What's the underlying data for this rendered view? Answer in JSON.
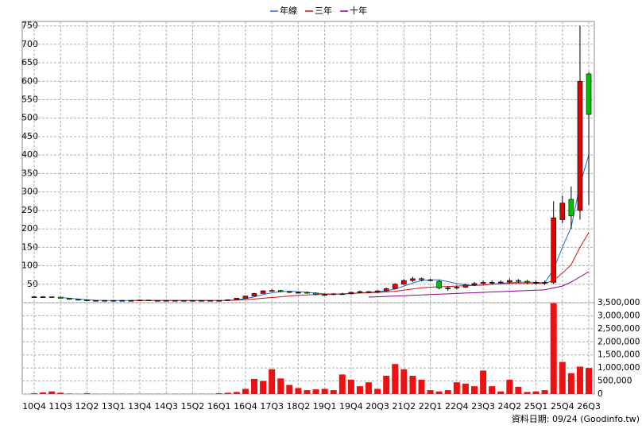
{
  "chart_data": [
    {
      "type": "candlestick",
      "categories": [
        "10Q4",
        null,
        null,
        "11Q3",
        null,
        null,
        "12Q2",
        null,
        null,
        "13Q1",
        null,
        null,
        "13Q4",
        null,
        null,
        "14Q3",
        null,
        null,
        "15Q2",
        null,
        null,
        "16Q1",
        null,
        null,
        "16Q4",
        null,
        null,
        "17Q3",
        null,
        null,
        "18Q2",
        null,
        null,
        "19Q1",
        null,
        null,
        "19Q4",
        null,
        null,
        "20Q3",
        null,
        null,
        "21Q2",
        null,
        null,
        "22Q1",
        null,
        null,
        "22Q4",
        null,
        null,
        "23Q3",
        null,
        null,
        "24Q2",
        null,
        null,
        "25Q1",
        null,
        null,
        "25Q4",
        null,
        null,
        "26Q3"
      ],
      "open": [
        16,
        16,
        16,
        15,
        12,
        9,
        7,
        6,
        6,
        6,
        6,
        6,
        6,
        7,
        6,
        6,
        6,
        6,
        6,
        6,
        6,
        6,
        6,
        8,
        12,
        18,
        25,
        32,
        33,
        30,
        28,
        28,
        26,
        22,
        22,
        24,
        24,
        28,
        30,
        28,
        32,
        38,
        50,
        60,
        65,
        62,
        58,
        40,
        40,
        42,
        48,
        52,
        55,
        55,
        56,
        60,
        58,
        55,
        55,
        55,
        225,
        280,
        250,
        620
      ],
      "high": [
        18,
        18,
        17,
        16,
        13,
        10,
        8,
        7,
        7,
        7,
        7,
        7,
        8,
        8,
        7,
        7,
        7,
        7,
        7,
        7,
        7,
        7,
        9,
        13,
        19,
        27,
        34,
        36,
        35,
        32,
        30,
        30,
        28,
        24,
        26,
        27,
        30,
        33,
        32,
        34,
        41,
        53,
        64,
        70,
        68,
        65,
        62,
        45,
        46,
        52,
        56,
        60,
        60,
        60,
        66,
        64,
        62,
        60,
        60,
        275,
        290,
        315,
        750,
        625
      ],
      "low": [
        14,
        14,
        13,
        11,
        8,
        6,
        5,
        5,
        5,
        5,
        5,
        5,
        5,
        5,
        5,
        5,
        5,
        5,
        5,
        5,
        5,
        5,
        5,
        7,
        11,
        17,
        24,
        30,
        28,
        26,
        26,
        24,
        20,
        20,
        20,
        22,
        22,
        26,
        26,
        26,
        30,
        36,
        48,
        56,
        58,
        58,
        36,
        32,
        36,
        40,
        45,
        50,
        50,
        52,
        52,
        54,
        50,
        50,
        48,
        50,
        215,
        200,
        225,
        265
      ],
      "close": [
        16,
        16,
        15,
        12,
        9,
        7,
        6,
        6,
        6,
        6,
        6,
        6,
        7,
        6,
        6,
        6,
        6,
        6,
        6,
        6,
        6,
        6,
        8,
        12,
        18,
        25,
        32,
        33,
        30,
        28,
        28,
        26,
        22,
        22,
        24,
        24,
        28,
        30,
        28,
        32,
        38,
        50,
        60,
        65,
        62,
        62,
        40,
        40,
        42,
        48,
        52,
        55,
        55,
        56,
        60,
        58,
        55,
        55,
        55,
        230,
        270,
        235,
        600,
        510
      ],
      "up_color": "#e00000",
      "down_color": "#00c000",
      "flat_color": "#000000",
      "series": [
        {
          "name": "年線",
          "color": "#1f6fd0",
          "values": [
            null,
            null,
            null,
            14,
            12,
            10,
            8,
            6.5,
            6,
            6,
            6,
            6,
            6,
            6,
            6,
            6,
            6,
            6,
            6,
            6,
            6,
            6,
            6,
            8,
            11,
            16,
            22,
            27,
            30,
            31,
            30,
            28,
            26,
            24,
            23,
            23,
            25,
            27,
            28,
            30,
            32,
            37,
            45,
            53,
            60,
            62,
            62,
            57,
            52,
            48,
            47,
            48,
            50,
            52,
            54,
            55,
            56,
            55,
            54,
            90,
            150,
            205,
            320,
            400
          ]
        },
        {
          "name": "三年",
          "color": "#d01010",
          "values": [
            null,
            null,
            null,
            null,
            null,
            null,
            null,
            null,
            null,
            null,
            null,
            6,
            6,
            6,
            6,
            6,
            6,
            6,
            6,
            6,
            6,
            6,
            6,
            7,
            8,
            10,
            12,
            14,
            16,
            18,
            20,
            21,
            22,
            22,
            23,
            24,
            25,
            26,
            27,
            28,
            29,
            31,
            34,
            37,
            40,
            42,
            43,
            44,
            45,
            46,
            47,
            48,
            50,
            51,
            52,
            52,
            52,
            52,
            52,
            60,
            80,
            103,
            150,
            190
          ]
        },
        {
          "name": "十年",
          "color": "#8b008b",
          "values": [
            null,
            null,
            null,
            null,
            null,
            null,
            null,
            null,
            null,
            null,
            null,
            null,
            null,
            null,
            null,
            null,
            null,
            null,
            null,
            null,
            null,
            null,
            null,
            null,
            null,
            null,
            null,
            null,
            null,
            null,
            null,
            null,
            null,
            null,
            null,
            null,
            null,
            null,
            15,
            16,
            17,
            18,
            19,
            20,
            21,
            22,
            23,
            24,
            25,
            26,
            27,
            28,
            29,
            30,
            31,
            32,
            33,
            34,
            35,
            40,
            45,
            56,
            70,
            84
          ]
        }
      ],
      "ylim": [
        0,
        762
      ],
      "yticks": [
        50,
        100,
        150,
        200,
        250,
        300,
        350,
        400,
        450,
        500,
        550,
        600,
        650,
        700,
        750
      ],
      "grid": true,
      "legend": "top"
    },
    {
      "type": "bar",
      "color": "#ee1111",
      "values": [
        30000,
        60000,
        100000,
        50000,
        20000,
        10000,
        30000,
        10000,
        10000,
        10000,
        10000,
        10000,
        10000,
        10000,
        10000,
        10000,
        10000,
        10000,
        10000,
        10000,
        10000,
        30000,
        50000,
        80000,
        200000,
        580000,
        500000,
        950000,
        600000,
        350000,
        230000,
        150000,
        180000,
        200000,
        150000,
        750000,
        550000,
        300000,
        450000,
        200000,
        700000,
        1150000,
        950000,
        700000,
        550000,
        150000,
        100000,
        150000,
        450000,
        400000,
        300000,
        900000,
        300000,
        100000,
        550000,
        280000,
        80000,
        100000,
        150000,
        3480000,
        1230000,
        800000,
        1050000,
        1000000
      ],
      "ylim": [
        0,
        3500000
      ],
      "yticks": [
        0,
        {
          "value": 500000,
          "label": "500,000"
        },
        {
          "value": 1000000,
          "label": "1,000,000"
        },
        {
          "value": 1500000,
          "label": "1,500,000"
        },
        {
          "value": 2000000,
          "label": "2,000,000"
        },
        {
          "value": 2500000,
          "label": "2,500,000"
        },
        {
          "value": 3000000,
          "label": "3,000,000"
        },
        {
          "value": 3500000,
          "label": "3,500,000"
        }
      ]
    }
  ],
  "footer": "資料日期: 09/24 (Goodinfo.tw)"
}
